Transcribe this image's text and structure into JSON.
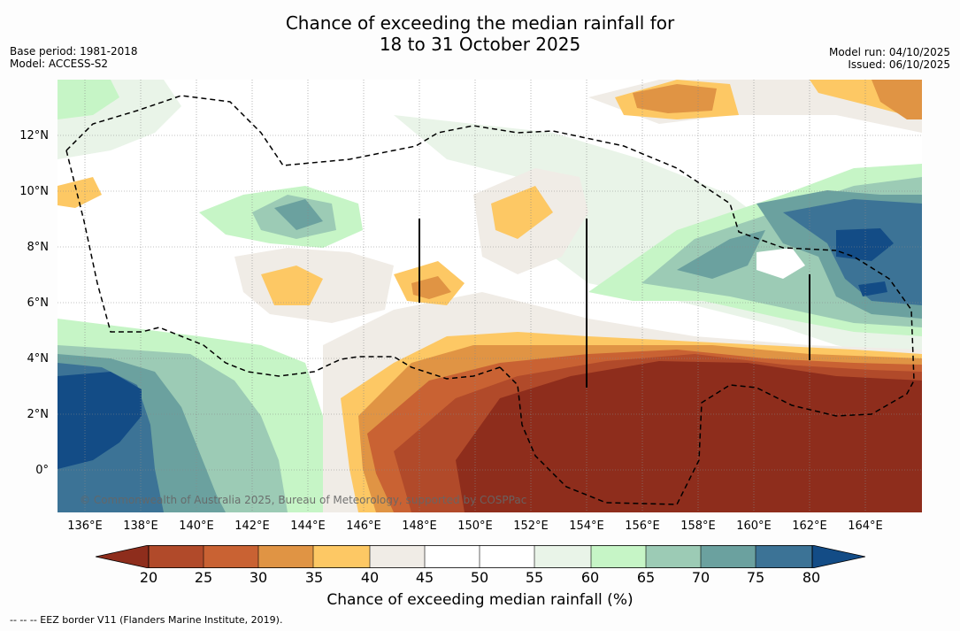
{
  "title_line1": "Chance of exceeding the median rainfall for",
  "title_line2": "18 to 31 October 2025",
  "base_period": "Base period: 1981-2018",
  "model": "Model: ACCESS-S2",
  "model_run": "Model run: 04/10/2025",
  "issued": "Issued: 06/10/2025",
  "y_ticks": [
    "12°N",
    "10°N",
    "8°N",
    "6°N",
    "4°N",
    "2°N",
    "0°"
  ],
  "x_ticks": [
    "136°E",
    "138°E",
    "140°E",
    "142°E",
    "144°E",
    "146°E",
    "148°E",
    "150°E",
    "152°E",
    "154°E",
    "156°E",
    "158°E",
    "160°E",
    "162°E",
    "164°E"
  ],
  "colorbar_labels": [
    "20",
    "25",
    "30",
    "35",
    "40",
    "45",
    "50",
    "55",
    "60",
    "65",
    "70",
    "75",
    "80"
  ],
  "colorbar_title": "Chance of exceeding median rainfall (%)",
  "copyright": "© Commonwealth of Australia 2025, Bureau of Meteorology, supported by COSPPac",
  "eez_legend": "-- -- -- EEZ border V11 (Flanders Marine Institute, 2019).",
  "colors": {
    "c20": "#8e2d1c",
    "c25": "#b14a2a",
    "c30": "#c96233",
    "c35": "#e09444",
    "c40": "#fdc864",
    "c45": "#f0ece6",
    "c50": "#ffffff",
    "c55": "#ffffff",
    "c60": "#e9f4e8",
    "c65": "#c6f5c6",
    "c70": "#9ccbb5",
    "c75": "#6ba19f",
    "c80": "#3c7396",
    "c85": "#134c86"
  }
}
